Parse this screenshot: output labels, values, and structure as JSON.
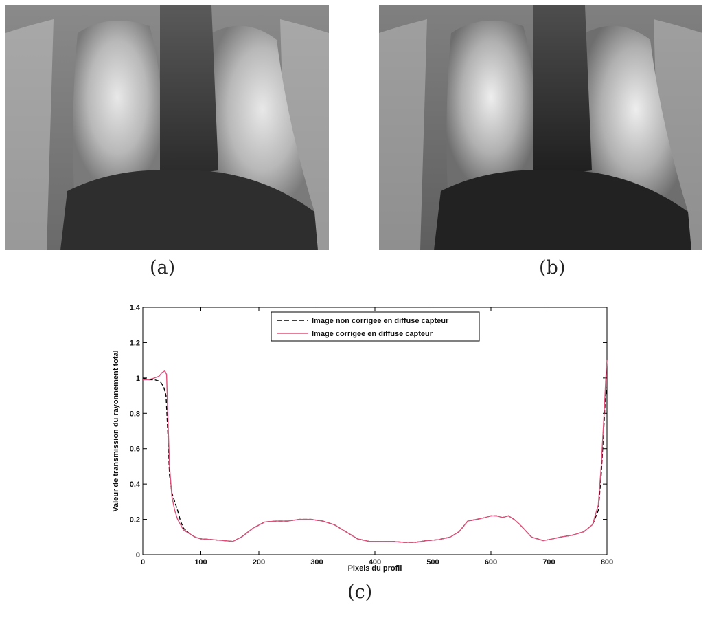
{
  "figure": {
    "panel_labels": {
      "a": "(a)",
      "b": "(b)",
      "c": "(c)"
    }
  },
  "chart_data": {
    "type": "line",
    "xlabel": "Pixels du profil",
    "ylabel": "Valeur de transmission du rayonnement total",
    "xlim": [
      0,
      800
    ],
    "ylim": [
      0,
      1.4
    ],
    "xticks": [
      "0",
      "100",
      "200",
      "300",
      "400",
      "500",
      "600",
      "700",
      "800"
    ],
    "yticks": [
      "0",
      "0.2",
      "0.4",
      "0.6",
      "0.8",
      "1",
      "1.2",
      "1.4"
    ],
    "legend_position": "top-center",
    "grid": false,
    "series": [
      {
        "name": "Image non corrigee en diffuse capteur",
        "style": "dashed",
        "color": "#000000",
        "x": [
          0,
          10,
          20,
          30,
          36,
          40,
          43,
          46,
          50,
          55,
          60,
          65,
          70,
          80,
          90,
          100,
          120,
          140,
          155,
          170,
          190,
          210,
          230,
          250,
          270,
          290,
          310,
          330,
          350,
          370,
          390,
          410,
          430,
          450,
          470,
          490,
          510,
          530,
          545,
          560,
          575,
          590,
          600,
          610,
          620,
          630,
          640,
          650,
          670,
          690,
          700,
          720,
          740,
          760,
          775,
          785,
          790,
          795,
          798,
          800
        ],
        "y": [
          1.0,
          0.99,
          0.99,
          0.98,
          0.95,
          0.9,
          0.7,
          0.45,
          0.35,
          0.3,
          0.25,
          0.19,
          0.15,
          0.12,
          0.1,
          0.09,
          0.085,
          0.08,
          0.075,
          0.1,
          0.15,
          0.185,
          0.19,
          0.19,
          0.2,
          0.2,
          0.19,
          0.17,
          0.13,
          0.09,
          0.075,
          0.075,
          0.075,
          0.07,
          0.07,
          0.08,
          0.085,
          0.1,
          0.13,
          0.19,
          0.2,
          0.21,
          0.22,
          0.22,
          0.21,
          0.22,
          0.2,
          0.17,
          0.1,
          0.08,
          0.085,
          0.1,
          0.11,
          0.13,
          0.17,
          0.25,
          0.45,
          0.75,
          0.95,
          0.9
        ]
      },
      {
        "name": "Image corrigee en diffuse capteur",
        "style": "solid",
        "color": "#e0507a",
        "x": [
          0,
          10,
          20,
          28,
          33,
          38,
          41,
          43,
          46,
          50,
          55,
          60,
          65,
          70,
          80,
          90,
          100,
          120,
          140,
          155,
          170,
          190,
          210,
          230,
          250,
          270,
          290,
          310,
          330,
          350,
          370,
          390,
          410,
          430,
          450,
          470,
          490,
          510,
          530,
          545,
          560,
          575,
          590,
          600,
          610,
          620,
          630,
          640,
          650,
          670,
          690,
          700,
          720,
          740,
          760,
          775,
          785,
          790,
          795,
          798,
          800
        ],
        "y": [
          0.99,
          0.99,
          1.0,
          1.01,
          1.03,
          1.04,
          1.02,
          0.8,
          0.5,
          0.33,
          0.25,
          0.2,
          0.17,
          0.14,
          0.12,
          0.1,
          0.09,
          0.085,
          0.08,
          0.075,
          0.1,
          0.15,
          0.185,
          0.19,
          0.19,
          0.2,
          0.2,
          0.19,
          0.17,
          0.13,
          0.09,
          0.075,
          0.075,
          0.075,
          0.07,
          0.07,
          0.08,
          0.085,
          0.1,
          0.13,
          0.19,
          0.2,
          0.21,
          0.22,
          0.22,
          0.21,
          0.22,
          0.2,
          0.17,
          0.1,
          0.08,
          0.085,
          0.1,
          0.11,
          0.13,
          0.17,
          0.28,
          0.5,
          0.8,
          1.0,
          1.1
        ]
      }
    ]
  }
}
